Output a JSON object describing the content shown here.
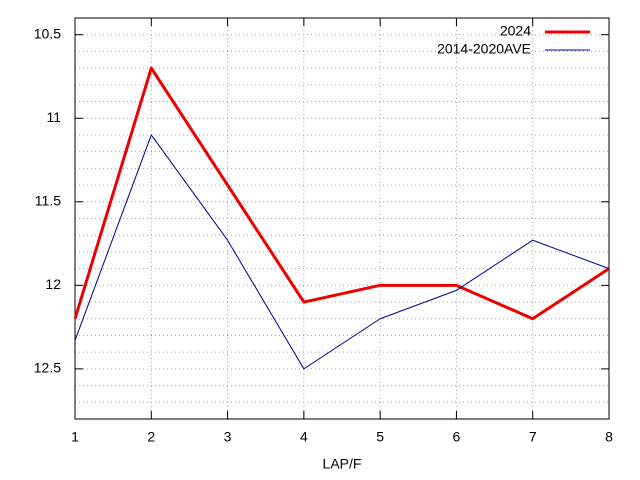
{
  "chart_data": {
    "type": "line",
    "xlabel": "LAP/F",
    "x": [
      1,
      2,
      3,
      4,
      5,
      6,
      7,
      8
    ],
    "series": [
      {
        "name": "2024",
        "color": "#ee0000",
        "width": 3,
        "values": [
          12.2,
          10.7,
          11.4,
          12.1,
          12.0,
          12.0,
          12.2,
          11.9
        ]
      },
      {
        "name": "2014-2020AVE",
        "color": "#00008b",
        "width": 1,
        "values": [
          12.33,
          11.1,
          11.73,
          12.5,
          12.2,
          12.03,
          11.73,
          11.9
        ]
      }
    ],
    "xlim": [
      1,
      8
    ],
    "xticks": [
      1,
      2,
      3,
      4,
      5,
      6,
      7,
      8
    ],
    "ylim": [
      10.4,
      12.8
    ],
    "y_reversed": true,
    "yticks": [
      10.5,
      11,
      11.5,
      12,
      12.5
    ],
    "yminor_ticks": [
      10.4,
      10.6,
      10.7,
      10.8,
      10.9,
      11.1,
      11.2,
      11.3,
      11.4,
      11.6,
      11.7,
      11.8,
      11.9,
      12.1,
      12.2,
      12.3,
      12.4,
      12.6,
      12.7,
      12.8
    ],
    "grid": true,
    "legend": "top-right"
  }
}
